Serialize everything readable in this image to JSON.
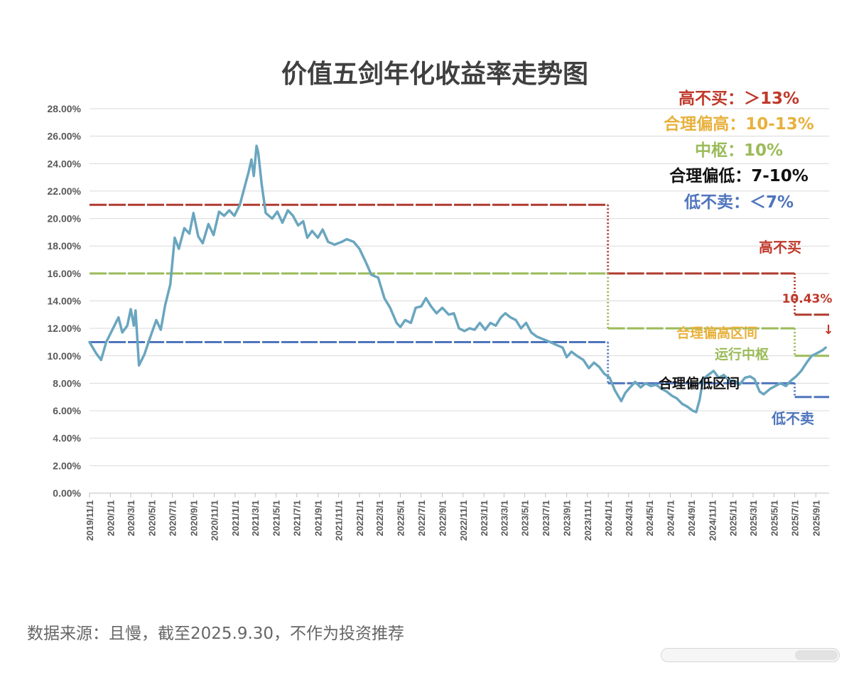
{
  "chart_data": {
    "type": "line",
    "title": "价值五剑年化收益率走势图",
    "ylim": [
      0,
      28
    ],
    "y_ticks": [
      "0.00%",
      "2.00%",
      "4.00%",
      "6.00%",
      "8.00%",
      "10.00%",
      "12.00%",
      "14.00%",
      "16.00%",
      "18.00%",
      "20.00%",
      "22.00%",
      "24.00%",
      "26.00%",
      "28.00%"
    ],
    "x_start": "2019-11-01",
    "x_end": "2025-10-10",
    "x_ticks": [
      "2019/11/1",
      "2020/1/1",
      "2020/3/1",
      "2020/5/1",
      "2020/7/1",
      "2020/9/1",
      "2020/11/1",
      "2021/1/1",
      "2021/3/1",
      "2021/5/1",
      "2021/7/1",
      "2021/9/1",
      "2021/11/1",
      "2022/1/1",
      "2022/3/1",
      "2022/5/1",
      "2022/7/1",
      "2022/9/1",
      "2022/11/1",
      "2023/1/1",
      "2023/3/1",
      "2023/5/1",
      "2023/7/1",
      "2023/9/1",
      "2023/11/1",
      "2024/1/1",
      "2024/3/1",
      "2024/5/1",
      "2024/7/1",
      "2024/9/1",
      "2024/11/1",
      "2025/1/1",
      "2025/3/1",
      "2025/5/1",
      "2025/7/1",
      "2025/9/1"
    ],
    "grid": true,
    "line_color": "#6aa6bf",
    "series": [
      {
        "values": [
          [
            "2019-11-01",
            11.0
          ],
          [
            "2019-11-20",
            10.2
          ],
          [
            "2019-12-05",
            9.7
          ],
          [
            "2019-12-20",
            11.0
          ],
          [
            "2020-01-05",
            11.8
          ],
          [
            "2020-01-25",
            12.8
          ],
          [
            "2020-02-05",
            11.7
          ],
          [
            "2020-02-20",
            12.2
          ],
          [
            "2020-03-01",
            13.4
          ],
          [
            "2020-03-10",
            12.2
          ],
          [
            "2020-03-15",
            13.3
          ],
          [
            "2020-03-25",
            9.3
          ],
          [
            "2020-04-10",
            10.1
          ],
          [
            "2020-04-25",
            11.2
          ],
          [
            "2020-05-15",
            12.6
          ],
          [
            "2020-05-28",
            11.9
          ],
          [
            "2020-06-10",
            13.7
          ],
          [
            "2020-06-25",
            15.2
          ],
          [
            "2020-07-08",
            18.6
          ],
          [
            "2020-07-20",
            17.8
          ],
          [
            "2020-08-05",
            19.3
          ],
          [
            "2020-08-20",
            18.9
          ],
          [
            "2020-09-01",
            20.4
          ],
          [
            "2020-09-15",
            18.7
          ],
          [
            "2020-09-28",
            18.2
          ],
          [
            "2020-10-15",
            19.6
          ],
          [
            "2020-10-30",
            18.8
          ],
          [
            "2020-11-15",
            20.5
          ],
          [
            "2020-11-30",
            20.2
          ],
          [
            "2020-12-15",
            20.6
          ],
          [
            "2020-12-30",
            20.2
          ],
          [
            "2021-01-15",
            21.0
          ],
          [
            "2021-01-30",
            22.4
          ],
          [
            "2021-02-10",
            23.4
          ],
          [
            "2021-02-18",
            24.3
          ],
          [
            "2021-02-25",
            23.1
          ],
          [
            "2021-03-05",
            25.3
          ],
          [
            "2021-03-10",
            24.8
          ],
          [
            "2021-03-20",
            22.5
          ],
          [
            "2021-04-01",
            20.4
          ],
          [
            "2021-04-20",
            20.0
          ],
          [
            "2021-05-05",
            20.5
          ],
          [
            "2021-05-20",
            19.7
          ],
          [
            "2021-06-05",
            20.6
          ],
          [
            "2021-06-20",
            20.2
          ],
          [
            "2021-07-05",
            19.5
          ],
          [
            "2021-07-20",
            19.8
          ],
          [
            "2021-08-01",
            18.6
          ],
          [
            "2021-08-15",
            19.1
          ],
          [
            "2021-09-01",
            18.6
          ],
          [
            "2021-09-15",
            19.2
          ],
          [
            "2021-10-01",
            18.3
          ],
          [
            "2021-10-20",
            18.1
          ],
          [
            "2021-11-10",
            18.3
          ],
          [
            "2021-11-25",
            18.5
          ],
          [
            "2021-12-15",
            18.3
          ],
          [
            "2022-01-01",
            17.8
          ],
          [
            "2022-01-20",
            16.8
          ],
          [
            "2022-02-05",
            15.9
          ],
          [
            "2022-02-25",
            15.7
          ],
          [
            "2022-03-15",
            14.2
          ],
          [
            "2022-04-01",
            13.5
          ],
          [
            "2022-04-20",
            12.4
          ],
          [
            "2022-05-01",
            12.1
          ],
          [
            "2022-05-15",
            12.6
          ],
          [
            "2022-06-01",
            12.4
          ],
          [
            "2022-06-15",
            13.5
          ],
          [
            "2022-07-01",
            13.6
          ],
          [
            "2022-07-15",
            14.2
          ],
          [
            "2022-07-30",
            13.6
          ],
          [
            "2022-08-15",
            13.1
          ],
          [
            "2022-09-01",
            13.5
          ],
          [
            "2022-09-20",
            13.0
          ],
          [
            "2022-10-05",
            13.1
          ],
          [
            "2022-10-20",
            12.0
          ],
          [
            "2022-11-05",
            11.8
          ],
          [
            "2022-11-20",
            12.0
          ],
          [
            "2022-12-05",
            11.9
          ],
          [
            "2022-12-20",
            12.4
          ],
          [
            "2023-01-05",
            11.9
          ],
          [
            "2023-01-20",
            12.4
          ],
          [
            "2023-02-05",
            12.2
          ],
          [
            "2023-02-20",
            12.8
          ],
          [
            "2023-03-05",
            13.1
          ],
          [
            "2023-03-20",
            12.8
          ],
          [
            "2023-04-05",
            12.6
          ],
          [
            "2023-04-20",
            12.0
          ],
          [
            "2023-05-05",
            12.4
          ],
          [
            "2023-05-20",
            11.7
          ],
          [
            "2023-06-05",
            11.4
          ],
          [
            "2023-06-25",
            11.2
          ],
          [
            "2023-07-15",
            11.0
          ],
          [
            "2023-08-01",
            10.8
          ],
          [
            "2023-08-20",
            10.6
          ],
          [
            "2023-09-01",
            9.9
          ],
          [
            "2023-09-15",
            10.3
          ],
          [
            "2023-10-01",
            10.0
          ],
          [
            "2023-10-20",
            9.7
          ],
          [
            "2023-11-05",
            9.1
          ],
          [
            "2023-11-20",
            9.5
          ],
          [
            "2023-12-05",
            9.2
          ],
          [
            "2023-12-20",
            8.7
          ],
          [
            "2024-01-05",
            8.4
          ],
          [
            "2024-01-20",
            7.5
          ],
          [
            "2024-02-01",
            7.0
          ],
          [
            "2024-02-08",
            6.7
          ],
          [
            "2024-02-20",
            7.3
          ],
          [
            "2024-03-05",
            7.7
          ],
          [
            "2024-03-20",
            8.1
          ],
          [
            "2024-04-05",
            7.7
          ],
          [
            "2024-04-20",
            8.0
          ],
          [
            "2024-05-05",
            7.8
          ],
          [
            "2024-05-20",
            7.9
          ],
          [
            "2024-06-05",
            7.6
          ],
          [
            "2024-06-20",
            7.4
          ],
          [
            "2024-07-05",
            7.1
          ],
          [
            "2024-07-20",
            6.9
          ],
          [
            "2024-08-05",
            6.5
          ],
          [
            "2024-08-20",
            6.3
          ],
          [
            "2024-09-05",
            6.0
          ],
          [
            "2024-09-15",
            5.9
          ],
          [
            "2024-09-25",
            6.8
          ],
          [
            "2024-10-05",
            8.3
          ],
          [
            "2024-10-20",
            8.6
          ],
          [
            "2024-11-05",
            8.9
          ],
          [
            "2024-11-20",
            8.4
          ],
          [
            "2024-12-05",
            8.6
          ],
          [
            "2024-12-20",
            8.2
          ],
          [
            "2025-01-05",
            8.2
          ],
          [
            "2025-01-20",
            7.9
          ],
          [
            "2025-02-05",
            8.4
          ],
          [
            "2025-02-20",
            8.5
          ],
          [
            "2025-03-05",
            8.3
          ],
          [
            "2025-03-20",
            7.4
          ],
          [
            "2025-04-01",
            7.2
          ],
          [
            "2025-04-20",
            7.6
          ],
          [
            "2025-05-05",
            7.8
          ],
          [
            "2025-05-20",
            8.0
          ],
          [
            "2025-06-05",
            7.8
          ],
          [
            "2025-06-20",
            8.2
          ],
          [
            "2025-07-05",
            8.5
          ],
          [
            "2025-07-20",
            8.9
          ],
          [
            "2025-08-05",
            9.5
          ],
          [
            "2025-08-20",
            10.0
          ],
          [
            "2025-09-05",
            10.2
          ],
          [
            "2025-09-20",
            10.4
          ],
          [
            "2025-09-30",
            10.6
          ]
        ]
      }
    ],
    "reference_lines": [
      {
        "color": "#b03a2e",
        "style": "dash",
        "segments": [
          [
            "2019-11-01",
            21,
            "2023-12-31",
            21
          ],
          [
            "2023-12-31",
            21,
            "2023-12-31",
            16
          ],
          [
            "2023-12-31",
            16,
            "2025-07-01",
            16
          ],
          [
            "2025-07-01",
            16,
            "2025-07-01",
            13
          ],
          [
            "2025-07-01",
            13,
            "2025-10-10",
            13
          ]
        ]
      },
      {
        "color": "#9bbb59",
        "style": "dash",
        "segments": [
          [
            "2019-11-01",
            16,
            "2023-12-31",
            16
          ],
          [
            "2023-12-31",
            16,
            "2023-12-31",
            12
          ],
          [
            "2023-12-31",
            12,
            "2025-07-01",
            12
          ],
          [
            "2025-07-01",
            12,
            "2025-07-01",
            10
          ],
          [
            "2025-07-01",
            10,
            "2025-10-10",
            10
          ]
        ]
      },
      {
        "color": "#4f75bd",
        "style": "dash",
        "segments": [
          [
            "2019-11-01",
            11,
            "2023-12-31",
            11
          ],
          [
            "2023-12-31",
            11,
            "2023-12-31",
            8
          ],
          [
            "2023-12-31",
            8,
            "2025-07-01",
            8
          ],
          [
            "2025-07-01",
            8,
            "2025-07-01",
            7
          ],
          [
            "2025-07-01",
            7,
            "2025-10-10",
            7
          ]
        ]
      }
    ],
    "legend": [
      {
        "text": "高不买：＞13%",
        "color": "#c0392b"
      },
      {
        "text": "合理偏高：10-13%",
        "color": "#e8b13c"
      },
      {
        "text": "中枢：10%",
        "color": "#9bbb59"
      },
      {
        "text": "合理偏低：7-10%",
        "color": "#111111"
      },
      {
        "text": "低不卖：＜7%",
        "color": "#4f75bd"
      }
    ],
    "annotations": [
      {
        "text": "高不买",
        "color": "#c0392b"
      },
      {
        "text": "10.43%",
        "color": "#c0392b"
      },
      {
        "text": "↓",
        "color": "#c0392b"
      },
      {
        "text": "合理偏高区间",
        "color": "#e8b13c"
      },
      {
        "text": "运行中枢",
        "color": "#9bbb59"
      },
      {
        "text": "合理偏低区间",
        "color": "#111111"
      },
      {
        "text": "低不卖",
        "color": "#4f75bd"
      }
    ]
  },
  "footer": "数据来源：且慢，截至2025.9.30，不作为投资推荐"
}
